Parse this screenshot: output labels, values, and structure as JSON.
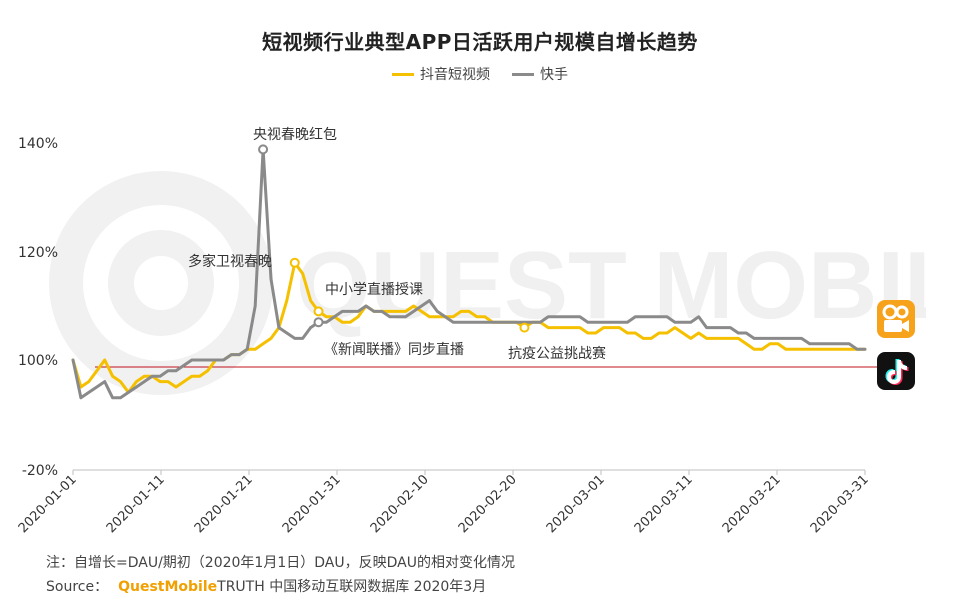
{
  "chart_data": {
    "type": "line",
    "title": "短视频行业典型APP日活跃用户规模自增长趋势",
    "x_ticks": [
      "2020-01-01",
      "2020-01-11",
      "2020-01-21",
      "2020-01-31",
      "2020-02-10",
      "2020-02-20",
      "2020-03-01",
      "2020-03-11",
      "2020-03-21",
      "2020-03-31"
    ],
    "y_ticks": [
      "140%",
      "120%",
      "100%",
      "-20%"
    ],
    "colors": {
      "douyin": "#f5c000",
      "kuaishou": "#8a8a8a",
      "refline": "#c0141e"
    },
    "series": [
      {
        "name": "抖音短视频",
        "key": "douyin",
        "values": [
          100,
          95,
          96,
          98,
          100,
          97,
          96,
          94,
          96,
          97,
          97,
          96,
          96,
          95,
          96,
          97,
          97,
          98,
          100,
          100,
          101,
          101,
          102,
          102,
          103,
          104,
          106,
          111,
          118,
          116,
          111,
          109,
          108,
          108,
          107,
          107,
          108,
          110,
          109,
          109,
          109,
          109,
          109,
          110,
          109,
          108,
          108,
          108,
          108,
          109,
          109,
          108,
          108,
          107,
          107,
          107,
          107,
          106,
          107,
          107,
          106,
          106,
          106,
          106,
          106,
          105,
          105,
          106,
          106,
          106,
          105,
          105,
          104,
          104,
          105,
          105,
          106,
          105,
          104,
          105,
          104,
          104,
          104,
          104,
          104,
          103,
          102,
          102,
          103,
          103,
          102,
          102,
          102,
          102,
          102,
          102,
          102,
          102,
          102,
          102,
          102
        ]
      },
      {
        "name": "快手",
        "key": "kuaishou",
        "values": [
          100,
          93,
          94,
          95,
          96,
          93,
          93,
          94,
          95,
          96,
          97,
          97,
          98,
          98,
          99,
          100,
          100,
          100,
          100,
          100,
          101,
          101,
          102,
          110,
          139,
          115,
          106,
          105,
          104,
          104,
          106,
          107,
          107,
          108,
          109,
          109,
          109,
          110,
          109,
          109,
          108,
          108,
          108,
          109,
          110,
          111,
          109,
          108,
          107,
          107,
          107,
          107,
          107,
          107,
          107,
          107,
          107,
          107,
          107,
          107,
          108,
          108,
          108,
          108,
          108,
          107,
          107,
          107,
          107,
          107,
          107,
          108,
          108,
          108,
          108,
          108,
          107,
          107,
          107,
          108,
          106,
          106,
          106,
          106,
          105,
          105,
          104,
          104,
          104,
          104,
          104,
          104,
          104,
          103,
          103,
          103,
          103,
          103,
          103,
          102,
          102
        ]
      }
    ],
    "annotations": [
      {
        "text": "央视春晚红包",
        "series": "kuaishou",
        "index": 24,
        "marker": true
      },
      {
        "text": "多家卫视春晚",
        "series": "douyin",
        "index": 28,
        "marker": true
      },
      {
        "text": "中小学直播授课",
        "series": "douyin",
        "index": 31,
        "marker": true
      },
      {
        "text": "《新闻联播》同步直播",
        "series": "kuaishou",
        "index": 31,
        "marker": true
      },
      {
        "text": "抗疫公益挑战赛",
        "series": "douyin",
        "index": 57,
        "marker": true
      }
    ],
    "reference_line": 100,
    "grid": false,
    "legend_position": "top-center"
  },
  "footnote": "注：自增长=DAU/期初（2020年1月1日）DAU，反映DAU的相对变化情况",
  "source": {
    "label": "Source：",
    "brand": "QuestMobile",
    "rest": "TRUTH 中国移动互联网数据库 2020年3月"
  },
  "watermark": {
    "text": "QUEST MOBILE"
  }
}
